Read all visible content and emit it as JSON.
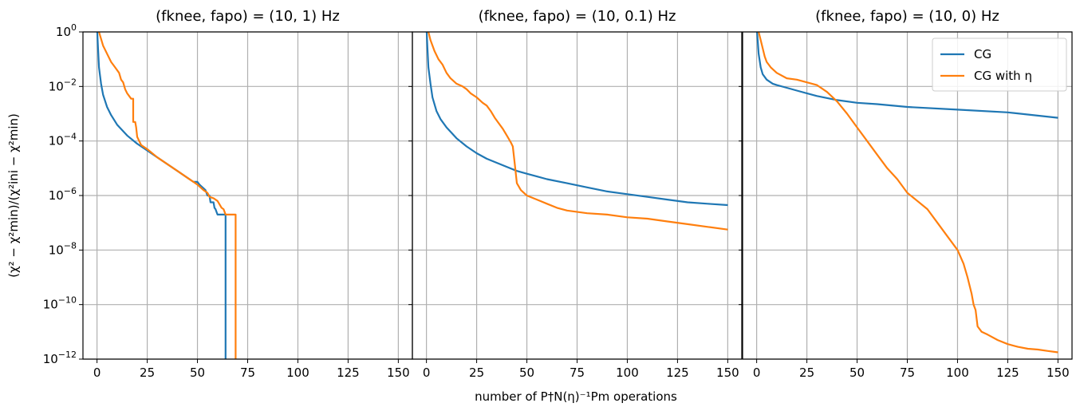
{
  "figure": {
    "xlabel": "number of P†N(η)⁻¹Pm operations",
    "ylabel": "(χ² − χ²min)/(χ²ini − χ²min)"
  },
  "legend": {
    "position": "top-right of third panel",
    "entries": [
      {
        "label": "CG",
        "color": "#1f77b4"
      },
      {
        "label": "CG with η",
        "color": "#ff7f0e"
      }
    ]
  },
  "chart_data": [
    {
      "type": "line",
      "title": "(fknee, fapo) = (10, 1) Hz",
      "xlim": [
        -7,
        157
      ],
      "ylim_log10": [
        -12,
        0
      ],
      "yscale": "log",
      "grid": true,
      "xticks": [
        0,
        25,
        50,
        75,
        100,
        125,
        150
      ],
      "yticks_exp": [
        -12,
        -10,
        -8,
        -6,
        -4,
        -2,
        0
      ],
      "series": [
        {
          "name": "CG",
          "color": "#1f77b4",
          "log10_y": [
            [
              0,
              0.2
            ],
            [
              0.5,
              -0.6
            ],
            [
              1,
              -1.3
            ],
            [
              2,
              -1.9
            ],
            [
              3,
              -2.3
            ],
            [
              5,
              -2.75
            ],
            [
              7,
              -3.05
            ],
            [
              10,
              -3.4
            ],
            [
              15,
              -3.8
            ],
            [
              20,
              -4.1
            ],
            [
              25,
              -4.35
            ],
            [
              30,
              -4.6
            ],
            [
              35,
              -4.85
            ],
            [
              40,
              -5.1
            ],
            [
              45,
              -5.35
            ],
            [
              48,
              -5.5
            ],
            [
              50,
              -5.5
            ],
            [
              51,
              -5.6
            ],
            [
              54,
              -5.8
            ],
            [
              55,
              -6.0
            ],
            [
              56,
              -6.0
            ],
            [
              56.5,
              -6.25
            ],
            [
              58,
              -6.25
            ],
            [
              58.5,
              -6.45
            ],
            [
              59,
              -6.5
            ],
            [
              60,
              -6.7
            ],
            [
              64,
              -6.7
            ],
            [
              64,
              -12.5
            ]
          ]
        },
        {
          "name": "CG with η",
          "color": "#ff7f0e",
          "log10_y": [
            [
              0,
              0.2
            ],
            [
              1,
              0
            ],
            [
              3,
              -0.5
            ],
            [
              5,
              -0.8
            ],
            [
              7,
              -1.1
            ],
            [
              9,
              -1.3
            ],
            [
              11,
              -1.5
            ],
            [
              12,
              -1.75
            ],
            [
              13,
              -1.85
            ],
            [
              14,
              -2.1
            ],
            [
              15,
              -2.25
            ],
            [
              16,
              -2.35
            ],
            [
              17,
              -2.45
            ],
            [
              18,
              -2.45
            ],
            [
              18,
              -3.3
            ],
            [
              19,
              -3.3
            ],
            [
              19.5,
              -3.5
            ],
            [
              20,
              -3.85
            ],
            [
              21,
              -4.0
            ],
            [
              22,
              -4.15
            ],
            [
              25,
              -4.3
            ],
            [
              30,
              -4.6
            ],
            [
              35,
              -4.85
            ],
            [
              40,
              -5.1
            ],
            [
              45,
              -5.35
            ],
            [
              50,
              -5.6
            ],
            [
              53,
              -5.8
            ],
            [
              55,
              -5.9
            ],
            [
              56,
              -6.05
            ],
            [
              58,
              -6.1
            ],
            [
              60,
              -6.2
            ],
            [
              62,
              -6.45
            ],
            [
              63,
              -6.5
            ],
            [
              64,
              -6.7
            ],
            [
              69,
              -6.7
            ],
            [
              69,
              -12.5
            ]
          ]
        }
      ]
    },
    {
      "type": "line",
      "title": "(fknee, fapo) = (10, 0.1) Hz",
      "xlim": [
        -7,
        157
      ],
      "ylim_log10": [
        -12,
        0
      ],
      "yscale": "log",
      "grid": true,
      "xticks": [
        0,
        25,
        50,
        75,
        100,
        125,
        150
      ],
      "yticks_exp": [
        -12,
        -10,
        -8,
        -6,
        -4,
        -2,
        0
      ],
      "series": [
        {
          "name": "CG",
          "color": "#1f77b4",
          "log10_y": [
            [
              0,
              0.2
            ],
            [
              0.5,
              -0.6
            ],
            [
              1,
              -1.3
            ],
            [
              2,
              -1.9
            ],
            [
              3,
              -2.4
            ],
            [
              5,
              -2.9
            ],
            [
              7,
              -3.2
            ],
            [
              10,
              -3.5
            ],
            [
              15,
              -3.9
            ],
            [
              20,
              -4.2
            ],
            [
              25,
              -4.45
            ],
            [
              30,
              -4.65
            ],
            [
              35,
              -4.8
            ],
            [
              40,
              -4.95
            ],
            [
              45,
              -5.1
            ],
            [
              50,
              -5.2
            ],
            [
              55,
              -5.3
            ],
            [
              60,
              -5.4
            ],
            [
              70,
              -5.55
            ],
            [
              80,
              -5.7
            ],
            [
              90,
              -5.85
            ],
            [
              100,
              -5.95
            ],
            [
              110,
              -6.05
            ],
            [
              120,
              -6.15
            ],
            [
              130,
              -6.25
            ],
            [
              140,
              -6.3
            ],
            [
              150,
              -6.35
            ]
          ]
        },
        {
          "name": "CG with η",
          "color": "#ff7f0e",
          "log10_y": [
            [
              0,
              0.2
            ],
            [
              1,
              0
            ],
            [
              2,
              -0.3
            ],
            [
              4,
              -0.7
            ],
            [
              6,
              -1.0
            ],
            [
              8,
              -1.2
            ],
            [
              10,
              -1.5
            ],
            [
              12,
              -1.7
            ],
            [
              15,
              -1.9
            ],
            [
              18,
              -2.0
            ],
            [
              20,
              -2.1
            ],
            [
              22,
              -2.25
            ],
            [
              25,
              -2.4
            ],
            [
              28,
              -2.6
            ],
            [
              30,
              -2.7
            ],
            [
              32,
              -2.9
            ],
            [
              34,
              -3.15
            ],
            [
              36,
              -3.35
            ],
            [
              38,
              -3.55
            ],
            [
              40,
              -3.8
            ],
            [
              42,
              -4.05
            ],
            [
              43,
              -4.2
            ],
            [
              44,
              -4.85
            ],
            [
              45,
              -5.55
            ],
            [
              47,
              -5.8
            ],
            [
              50,
              -6.0
            ],
            [
              55,
              -6.15
            ],
            [
              60,
              -6.3
            ],
            [
              65,
              -6.45
            ],
            [
              70,
              -6.55
            ],
            [
              80,
              -6.65
            ],
            [
              90,
              -6.7
            ],
            [
              100,
              -6.8
            ],
            [
              110,
              -6.85
            ],
            [
              120,
              -6.95
            ],
            [
              130,
              -7.05
            ],
            [
              140,
              -7.15
            ],
            [
              150,
              -7.25
            ]
          ]
        }
      ]
    },
    {
      "type": "line",
      "title": "(fknee, fapo) = (10, 0) Hz",
      "xlim": [
        -7,
        157
      ],
      "ylim_log10": [
        -12,
        0
      ],
      "yscale": "log",
      "grid": true,
      "xticks": [
        0,
        25,
        50,
        75,
        100,
        125,
        150
      ],
      "yticks_exp": [
        -12,
        -10,
        -8,
        -6,
        -4,
        -2,
        0
      ],
      "series": [
        {
          "name": "CG",
          "color": "#1f77b4",
          "log10_y": [
            [
              0,
              0.2
            ],
            [
              0.5,
              -0.3
            ],
            [
              1,
              -0.8
            ],
            [
              2,
              -1.3
            ],
            [
              3,
              -1.55
            ],
            [
              5,
              -1.75
            ],
            [
              8,
              -1.9
            ],
            [
              10,
              -1.95
            ],
            [
              15,
              -2.05
            ],
            [
              20,
              -2.15
            ],
            [
              25,
              -2.25
            ],
            [
              30,
              -2.35
            ],
            [
              40,
              -2.5
            ],
            [
              50,
              -2.6
            ],
            [
              60,
              -2.65
            ],
            [
              75,
              -2.75
            ],
            [
              100,
              -2.85
            ],
            [
              125,
              -2.95
            ],
            [
              150,
              -3.15
            ]
          ]
        },
        {
          "name": "CG with η",
          "color": "#ff7f0e",
          "log10_y": [
            [
              0,
              0.2
            ],
            [
              1,
              0
            ],
            [
              2,
              -0.3
            ],
            [
              3,
              -0.6
            ],
            [
              4,
              -0.9
            ],
            [
              5,
              -1.1
            ],
            [
              7,
              -1.3
            ],
            [
              10,
              -1.5
            ],
            [
              15,
              -1.7
            ],
            [
              20,
              -1.75
            ],
            [
              25,
              -1.85
            ],
            [
              30,
              -1.95
            ],
            [
              35,
              -2.2
            ],
            [
              40,
              -2.55
            ],
            [
              45,
              -3.0
            ],
            [
              50,
              -3.5
            ],
            [
              55,
              -4.0
            ],
            [
              60,
              -4.5
            ],
            [
              65,
              -5.0
            ],
            [
              70,
              -5.4
            ],
            [
              75,
              -5.9
            ],
            [
              80,
              -6.2
            ],
            [
              85,
              -6.5
            ],
            [
              90,
              -7.0
            ],
            [
              95,
              -7.5
            ],
            [
              100,
              -8.0
            ],
            [
              103,
              -8.5
            ],
            [
              105,
              -9.0
            ],
            [
              107,
              -9.6
            ],
            [
              108,
              -10.0
            ],
            [
              109,
              -10.2
            ],
            [
              110,
              -10.8
            ],
            [
              112,
              -11.0
            ],
            [
              115,
              -11.1
            ],
            [
              120,
              -11.3
            ],
            [
              125,
              -11.45
            ],
            [
              130,
              -11.55
            ],
            [
              135,
              -11.62
            ],
            [
              140,
              -11.65
            ],
            [
              145,
              -11.7
            ],
            [
              150,
              -11.75
            ]
          ]
        }
      ]
    }
  ]
}
